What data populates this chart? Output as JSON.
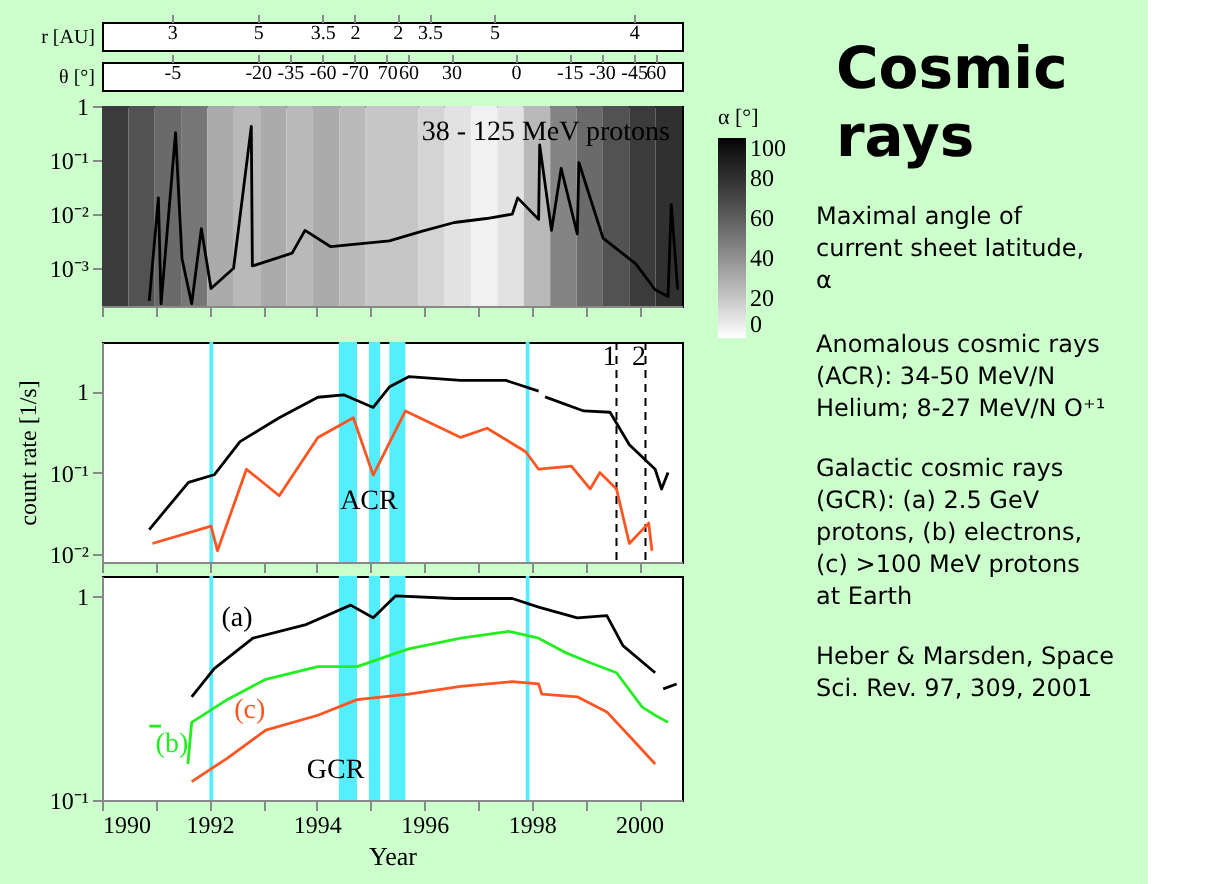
{
  "chart_data": [
    {
      "type": "other",
      "xlabel": "r [AU]",
      "categories": [
        null,
        null,
        null,
        null,
        null,
        null,
        "3",
        null,
        null,
        null,
        null,
        null,
        null,
        null,
        "5",
        null,
        null,
        null,
        null,
        null,
        "3.5",
        null,
        null,
        "2",
        null,
        null,
        null,
        "2",
        null,
        null,
        "3.5",
        null,
        null,
        null,
        null,
        null,
        "5",
        null,
        null,
        null,
        null,
        null,
        null,
        null,
        null,
        null,
        null,
        null,
        null,
        "4",
        null,
        null,
        null,
        null
      ]
    },
    {
      "type": "other",
      "xlabel": "θ [°]",
      "categories": [
        null,
        null,
        null,
        null,
        null,
        null,
        "-5",
        null,
        null,
        null,
        null,
        null,
        null,
        null,
        "-20",
        null,
        null,
        "-35",
        null,
        null,
        "-60",
        null,
        null,
        "-70",
        null,
        null,
        "70",
        null,
        "60",
        null,
        null,
        null,
        "30",
        null,
        null,
        null,
        null,
        null,
        "0",
        null,
        null,
        null,
        null,
        "-15",
        null,
        null,
        "-30",
        null,
        null,
        "-45",
        null,
        "60",
        null,
        null
      ]
    },
    {
      "type": "heatmap",
      "categories": [
        null,
        null,
        null,
        null,
        null,
        null,
        null,
        null,
        null,
        null,
        null,
        null,
        null,
        null,
        null,
        null,
        null,
        null,
        null,
        null,
        null,
        null
      ],
      "y_categories": [
        null
      ],
      "cells": [
        [
          75,
          65,
          55,
          50,
          30,
          25,
          30,
          25,
          30,
          25,
          20,
          20,
          15,
          10,
          5,
          10,
          25,
          45,
          55,
          65,
          75,
          80
        ]
      ],
      "clim": [
        0,
        100
      ],
      "cticks": [
        0,
        20,
        40,
        60,
        80,
        100
      ],
      "clabel": "α [°]"
    },
    {
      "type": "line",
      "xlim": [
        1990,
        2000.8
      ],
      "ylim": [
        0.0002,
        1
      ],
      "log": true,
      "grid": false,
      "tick_labels": "y",
      "xticks": [
        1990,
        1991,
        1992,
        1993,
        1994,
        1995,
        1996,
        1997,
        1998,
        1999,
        2000
      ],
      "yticks": [
        1,
        {
          "value": 0.1,
          "label": "10⁻¹"
        },
        {
          "value": 0.01,
          "label": "10⁻²"
        },
        {
          "value": 0.001,
          "label": "10⁻³"
        }
      ],
      "annotations": [
        "38 - 125 MeV protons"
      ],
      "series": [
        {
          "color": "#000000",
          "x": [
            1990.88,
            1991.05,
            1991.1,
            1991.37,
            1991.49,
            1991.67,
            1991.85,
            1992.03,
            1992.45,
            1992.78,
            1992.8,
            1993.54,
            1993.78,
            1994.26,
            1995.35,
            1995.95,
            1996.56,
            1997.16,
            1997.64,
            1997.74,
            1998.13,
            1998.15,
            1998.37,
            1998.55,
            1998.85,
            1998.88,
            1999.33,
            1999.94,
            2000.3,
            2000.54,
            2000.6,
            2000.72
          ],
          "values": [
            0.00025,
            0.02,
            0.00022,
            0.32,
            0.0015,
            0.00022,
            0.0054,
            0.00042,
            0.001,
            0.42,
            0.0011,
            0.0019,
            0.005,
            0.0025,
            0.0032,
            0.0048,
            0.007,
            0.0083,
            0.01,
            0.02,
            0.008,
            0.19,
            0.005,
            0.07,
            0.0043,
            0.09,
            0.0036,
            0.0012,
            0.0004,
            0.0003,
            0.015,
            0.0004
          ]
        }
      ]
    },
    {
      "type": "line",
      "xlim": [
        1990,
        2000.8
      ],
      "ylim": [
        0.008,
        4
      ],
      "log": true,
      "grid": false,
      "tick_labels": "y",
      "ylabel": "count rate [1/s]",
      "xticks": [
        1990,
        1991,
        1992,
        1993,
        1994,
        1995,
        1996,
        1997,
        1998,
        1999,
        2000
      ],
      "yticks": [
        1,
        {
          "value": 0.1,
          "label": "10⁻¹"
        },
        {
          "value": 0.01,
          "label": "10⁻²"
        }
      ],
      "bands": [
        {
          "axis": "x",
          "from": 1992.0,
          "to": 1992.07,
          "color": "#55eeff"
        },
        {
          "axis": "x",
          "from": 1994.41,
          "to": 1994.75,
          "color": "#55eeff"
        },
        {
          "axis": "x",
          "from": 1994.97,
          "to": 1995.18,
          "color": "#55eeff"
        },
        {
          "axis": "x",
          "from": 1995.35,
          "to": 1995.65,
          "color": "#55eeff"
        },
        {
          "axis": "x",
          "from": 1997.89,
          "to": 1997.96,
          "color": "#55eeff"
        }
      ],
      "ref_lines": [
        {
          "axis": "x",
          "value": 1999.58,
          "line_style": "dashed"
        },
        {
          "axis": "x",
          "value": 2000.12,
          "line_style": "dashed"
        }
      ],
      "annotations": [
        {
          "text": "ACR",
          "x": 1994.97,
          "y": 0.045
        },
        {
          "text": "1",
          "x": 1999.45,
          "y": 2.6
        },
        {
          "text": "2",
          "x": 2000.0,
          "y": 2.6
        }
      ],
      "series": [
        {
          "color": "#000000",
          "x": [
            1990.88,
            1991.61,
            1992.09,
            1992.57,
            1993.3,
            1994.02,
            1994.5,
            1995.05,
            1995.35,
            1995.71,
            1996.68,
            1997.52,
            1998.13,
            1998.2,
            1998.25,
            1998.97,
            1999.46,
            1999.82,
            2000.3,
            2000.42,
            2000.54
          ],
          "values": [
            0.02,
            0.076,
            0.094,
            0.24,
            0.47,
            0.84,
            0.9,
            0.63,
            1.12,
            1.5,
            1.35,
            1.35,
            1.0,
            null,
            0.85,
            0.57,
            0.55,
            0.22,
            0.11,
            0.063,
            0.1
          ]
        },
        {
          "color": "#ff5522",
          "x": [
            1990.94,
            1992.03,
            1992.15,
            1992.69,
            1993.3,
            1994.02,
            1994.68,
            1995.05,
            1995.65,
            1996.68,
            1997.17,
            1997.89,
            1998.13,
            1998.74,
            1999.09,
            1999.27,
            1999.58,
            1999.82,
            2000.18,
            2000.24
          ],
          "values": [
            0.0135,
            0.022,
            0.011,
            0.11,
            0.052,
            0.27,
            0.47,
            0.093,
            0.57,
            0.27,
            0.35,
            0.18,
            0.11,
            0.12,
            0.063,
            0.1,
            0.063,
            0.0135,
            0.024,
            0.011
          ]
        }
      ]
    },
    {
      "type": "line",
      "xlim": [
        1990,
        2000.8
      ],
      "ylim": [
        0.1,
        1.25
      ],
      "log": true,
      "grid": false,
      "xlabel": "Year",
      "xticks": [
        1990,
        {
          "value": 1991,
          "label": null
        },
        1992,
        {
          "value": 1993,
          "label": null
        },
        1994,
        {
          "value": 1995,
          "label": null
        },
        1996,
        {
          "value": 1997,
          "label": null
        },
        1998,
        {
          "value": 1999,
          "label": null
        },
        2000
      ],
      "yticks": [
        1,
        {
          "value": 0.1,
          "label": "10⁻¹"
        }
      ],
      "bands": [
        {
          "axis": "x",
          "from": 1992.0,
          "to": 1992.07,
          "color": "#55eeff"
        },
        {
          "axis": "x",
          "from": 1994.41,
          "to": 1994.75,
          "color": "#55eeff"
        },
        {
          "axis": "x",
          "from": 1994.97,
          "to": 1995.18,
          "color": "#55eeff"
        },
        {
          "axis": "x",
          "from": 1995.35,
          "to": 1995.65,
          "color": "#55eeff"
        },
        {
          "axis": "x",
          "from": 1997.89,
          "to": 1997.96,
          "color": "#55eeff"
        }
      ],
      "annotations": [
        {
          "text": "GCR",
          "x": 1994.35,
          "y": 0.14
        }
      ],
      "series": [
        {
          "name": "(a)",
          "color": "#000000",
          "x": [
            1991.67,
            1992.09,
            1992.81,
            1993.78,
            1994.63,
            1995.05,
            1995.47,
            1996.56,
            1997.64,
            1998.13,
            1998.85,
            1999.4,
            1999.7,
            2000.3,
            2000.4,
            2000.45,
            2000.7
          ],
          "values": [
            0.32,
            0.44,
            0.62,
            0.72,
            0.9,
            0.78,
            1.0,
            0.97,
            0.97,
            0.88,
            0.78,
            0.8,
            0.57,
            0.42,
            null,
            0.35,
            0.37
          ]
        },
        {
          "name": "(b)",
          "color": "#22ee22",
          "x": [
            1990.88,
            1991.1,
            1991.3,
            1991.6,
            1991.67,
            1992.33,
            1993.05,
            1994.02,
            1994.75,
            1995.71,
            1996.68,
            1997.58,
            1998.13,
            1998.61,
            1999.09,
            1999.58,
            2000.06,
            2000.3,
            2000.54
          ],
          "values": [
            0.23,
            0.23,
            null,
            0.15,
            0.24,
            0.31,
            0.39,
            0.45,
            0.45,
            0.55,
            0.62,
            0.67,
            0.62,
            0.53,
            0.47,
            0.42,
            0.285,
            0.26,
            0.24
          ]
        },
        {
          "name": "(c)",
          "color": "#ff5522",
          "x": [
            1991.67,
            1992.33,
            1993.05,
            1994.02,
            1994.75,
            1995.71,
            1996.68,
            1997.64,
            1998.13,
            1998.19,
            1998.85,
            1999.4,
            1999.94,
            2000.3
          ],
          "values": [
            0.123,
            0.16,
            0.22,
            0.26,
            0.31,
            0.33,
            0.36,
            0.38,
            0.37,
            0.33,
            0.32,
            0.27,
            0.19,
            0.15
          ]
        }
      ]
    },
    {
      "type": "other",
      "title": "Cosmic rays",
      "annotations": [
        "Maximal angle of current sheet latitude, α",
        "Anomalous cosmic rays (ACR): 34-50 MeV/N Helium; 8-27 MeV/N O⁺¹",
        "Galactic cosmic rays (GCR): (a) 2.5 GeV protons, (b) electrons, (c) >100 MeV  protons at Earth",
        "Heber & Marsden, Space Sci. Rev. 97, 309, 2001"
      ]
    }
  ]
}
